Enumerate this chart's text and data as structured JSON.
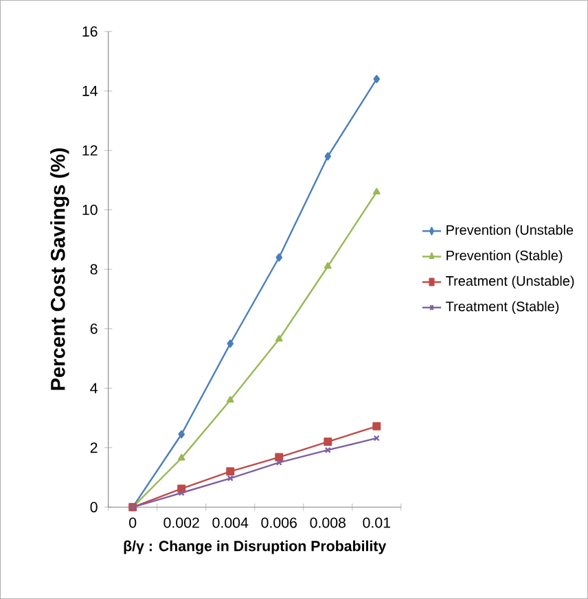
{
  "chart_data": {
    "type": "line",
    "xlabel": "β/γ : Change in Disruption Probability",
    "ylabel": "Percent Cost Savings (%)",
    "categories": [
      "0",
      "0.002",
      "0.004",
      "0.006",
      "0.008",
      "0.01"
    ],
    "series": [
      {
        "name": "Prevention (Unstable",
        "color": "#4a7ebb",
        "marker": "diamond",
        "values": [
          0,
          2.45,
          5.5,
          8.4,
          11.8,
          14.4
        ]
      },
      {
        "name": "Prevention (Stable)",
        "color": "#98b954",
        "marker": "triangle",
        "values": [
          0,
          1.65,
          3.6,
          5.65,
          8.1,
          10.6
        ]
      },
      {
        "name": "Treatment (Unstable)",
        "color": "#be4b48",
        "marker": "square",
        "values": [
          0,
          0.62,
          1.2,
          1.68,
          2.2,
          2.72
        ]
      },
      {
        "name": "Treatment (Stable)",
        "color": "#7d60a0",
        "marker": "cross",
        "values": [
          0,
          0.48,
          0.97,
          1.5,
          1.92,
          2.32
        ]
      }
    ],
    "ylim": [
      0,
      16
    ],
    "yticks": [
      0,
      2,
      4,
      6,
      8,
      10,
      12,
      14,
      16
    ],
    "grid": false,
    "legend": "right"
  }
}
